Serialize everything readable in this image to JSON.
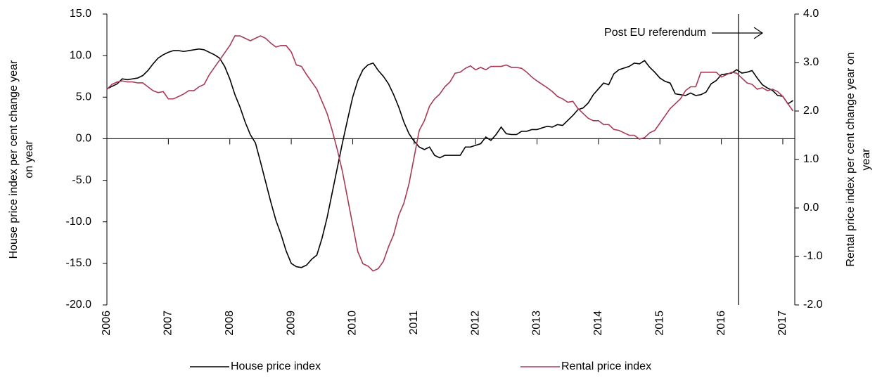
{
  "chart_data": {
    "type": "line",
    "y_label": [
      "House price index per cent change year",
      "on year"
    ],
    "y2_label": [
      "Rental price index per cent change year on",
      "year"
    ],
    "annotation": "Post EU referendum",
    "grid": false,
    "legend": "bottom",
    "categories": [
      "2006",
      null,
      null,
      null,
      null,
      null,
      null,
      null,
      null,
      null,
      null,
      null,
      "2007",
      null,
      null,
      null,
      null,
      null,
      null,
      null,
      null,
      null,
      null,
      null,
      "2008",
      null,
      null,
      null,
      null,
      null,
      null,
      null,
      null,
      null,
      null,
      null,
      "2009",
      null,
      null,
      null,
      null,
      null,
      null,
      null,
      null,
      null,
      null,
      null,
      "2010",
      null,
      null,
      null,
      null,
      null,
      null,
      null,
      null,
      null,
      null,
      null,
      "2011",
      null,
      null,
      null,
      null,
      null,
      null,
      null,
      null,
      null,
      null,
      null,
      "2012",
      null,
      null,
      null,
      null,
      null,
      null,
      null,
      null,
      null,
      null,
      null,
      "2013",
      null,
      null,
      null,
      null,
      null,
      null,
      null,
      null,
      null,
      null,
      null,
      "2014",
      null,
      null,
      null,
      null,
      null,
      null,
      null,
      null,
      null,
      null,
      null,
      "2015",
      null,
      null,
      null,
      null,
      null,
      null,
      null,
      null,
      null,
      null,
      null,
      "2016",
      null,
      null,
      null,
      null,
      null,
      null,
      null,
      null,
      null,
      null,
      null,
      "2017",
      null,
      null
    ],
    "series": [
      {
        "name": "House price index",
        "color": "#000000",
        "axis": "y",
        "values": [
          6.0,
          6.3,
          6.6,
          7.2,
          7.1,
          7.2,
          7.3,
          7.6,
          8.2,
          9.0,
          9.7,
          10.1,
          10.4,
          10.6,
          10.6,
          10.5,
          10.6,
          10.7,
          10.8,
          10.7,
          10.4,
          10.1,
          9.7,
          8.7,
          7.2,
          5.3,
          3.8,
          2.0,
          0.5,
          -0.5,
          -2.8,
          -5.2,
          -7.6,
          -9.8,
          -11.5,
          -13.5,
          -15.0,
          -15.4,
          -15.5,
          -15.2,
          -14.5,
          -14.0,
          -12.0,
          -9.5,
          -6.5,
          -3.5,
          -0.5,
          2.3,
          5.0,
          7.0,
          8.3,
          8.9,
          9.1,
          8.2,
          7.5,
          6.6,
          5.3,
          3.8,
          2.0,
          0.6,
          -0.3,
          -1.0,
          -1.3,
          -1.0,
          -2.0,
          -2.3,
          -2.0,
          -2.0,
          -2.0,
          -2.0,
          -1.0,
          -1.0,
          -0.8,
          -0.6,
          0.2,
          -0.2,
          0.5,
          1.4,
          0.6,
          0.5,
          0.5,
          0.9,
          0.9,
          1.1,
          1.1,
          1.3,
          1.5,
          1.4,
          1.7,
          1.6,
          2.2,
          2.8,
          3.5,
          3.7,
          4.3,
          5.3,
          6.0,
          6.7,
          6.5,
          7.8,
          8.3,
          8.5,
          8.7,
          9.1,
          9.0,
          9.4,
          8.6,
          8.0,
          7.3,
          6.9,
          6.7,
          5.4,
          5.3,
          5.2,
          5.5,
          5.2,
          5.3,
          5.6,
          6.6,
          7.0,
          7.7,
          7.8,
          7.9,
          8.3,
          7.9,
          8.0,
          8.2,
          7.3,
          6.5,
          6.1,
          5.8,
          5.2,
          5.1,
          4.2,
          4.6
        ]
      },
      {
        "name": "Rental price index",
        "color": "#a83a55",
        "axis": "y2",
        "values": [
          2.45,
          2.55,
          2.6,
          2.62,
          2.6,
          2.6,
          2.58,
          2.58,
          2.5,
          2.42,
          2.38,
          2.4,
          2.25,
          2.25,
          2.3,
          2.35,
          2.42,
          2.42,
          2.5,
          2.55,
          2.75,
          2.9,
          3.05,
          3.2,
          3.35,
          3.55,
          3.55,
          3.5,
          3.45,
          3.5,
          3.55,
          3.5,
          3.4,
          3.32,
          3.35,
          3.35,
          3.22,
          2.95,
          2.92,
          2.75,
          2.6,
          2.45,
          2.2,
          1.95,
          1.6,
          1.2,
          0.75,
          0.2,
          -0.35,
          -0.9,
          -1.15,
          -1.2,
          -1.3,
          -1.25,
          -1.1,
          -0.8,
          -0.55,
          -0.15,
          0.1,
          0.5,
          1.05,
          1.6,
          1.8,
          2.1,
          2.25,
          2.35,
          2.5,
          2.6,
          2.78,
          2.8,
          2.88,
          2.93,
          2.85,
          2.9,
          2.85,
          2.92,
          2.92,
          2.92,
          2.95,
          2.9,
          2.9,
          2.88,
          2.8,
          2.7,
          2.62,
          2.55,
          2.48,
          2.4,
          2.3,
          2.25,
          2.18,
          2.2,
          2.05,
          1.95,
          1.85,
          1.8,
          1.8,
          1.72,
          1.72,
          1.62,
          1.6,
          1.55,
          1.5,
          1.5,
          1.42,
          1.45,
          1.55,
          1.6,
          1.75,
          1.9,
          2.05,
          2.15,
          2.25,
          2.42,
          2.5,
          2.5,
          2.8,
          2.8,
          2.8,
          2.8,
          2.7,
          2.75,
          2.8,
          2.78,
          2.68,
          2.58,
          2.55,
          2.45,
          2.48,
          2.42,
          2.45,
          2.4,
          2.3,
          2.15,
          2.0
        ]
      }
    ],
    "ylim": [
      -20,
      15
    ],
    "yticks": [
      {
        "value": -20,
        "label": "-20.0"
      },
      {
        "value": -15,
        "label": "-15.0"
      },
      {
        "value": -10,
        "label": "-10.0"
      },
      {
        "value": -5,
        "label": "-5.0"
      },
      {
        "value": 0,
        "label": "0.0"
      },
      {
        "value": 5,
        "label": "5.0"
      },
      {
        "value": 10,
        "label": "10.0"
      },
      {
        "value": 15,
        "label": "15.0"
      }
    ],
    "y2lim": [
      -2,
      4
    ],
    "y2ticks": [
      {
        "value": -2,
        "label": "-2.0"
      },
      {
        "value": -1,
        "label": "-1.0"
      },
      {
        "value": 0,
        "label": "0.0"
      },
      {
        "value": 1,
        "label": "1.0"
      },
      {
        "value": 2,
        "label": "2.0"
      },
      {
        "value": 3,
        "label": "3.0"
      },
      {
        "value": 4,
        "label": "4.0"
      }
    ]
  }
}
